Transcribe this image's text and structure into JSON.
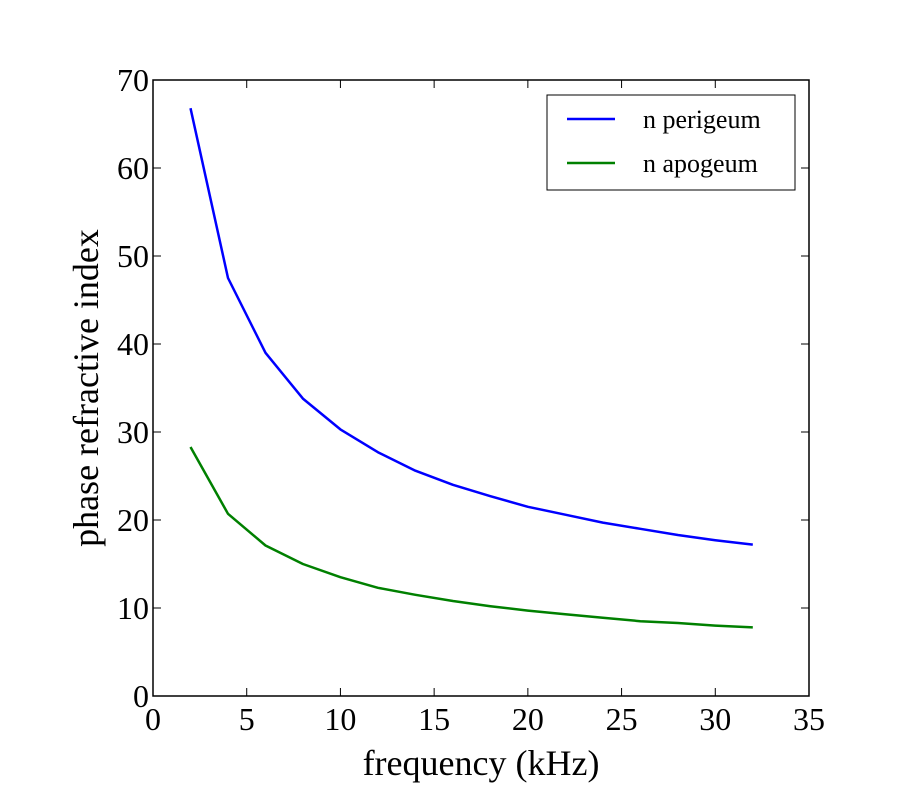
{
  "chart_data": {
    "type": "line",
    "title": "",
    "xlabel": "frequency (kHz)",
    "ylabel": "phase refractive index",
    "xlim": [
      0,
      35
    ],
    "ylim": [
      0,
      70
    ],
    "xticks": [
      0,
      5,
      10,
      15,
      20,
      25,
      30,
      35
    ],
    "yticks": [
      0,
      10,
      20,
      30,
      40,
      50,
      60,
      70
    ],
    "grid": false,
    "legend_position": "top-right",
    "x": [
      2,
      4,
      6,
      8,
      10,
      12,
      14,
      16,
      18,
      20,
      22,
      24,
      26,
      28,
      30,
      32
    ],
    "series": [
      {
        "name": "n perigeum",
        "color": "#0000ff",
        "values": [
          66.8,
          47.5,
          39.0,
          33.8,
          30.3,
          27.7,
          25.6,
          24.0,
          22.7,
          21.5,
          20.6,
          19.7,
          19.0,
          18.3,
          17.7,
          17.2
        ]
      },
      {
        "name": "n apogeum",
        "color": "#008000",
        "values": [
          28.3,
          20.7,
          17.1,
          15.0,
          13.5,
          12.3,
          11.5,
          10.8,
          10.2,
          9.7,
          9.3,
          8.9,
          8.5,
          8.3,
          8.0,
          7.8
        ]
      }
    ]
  }
}
